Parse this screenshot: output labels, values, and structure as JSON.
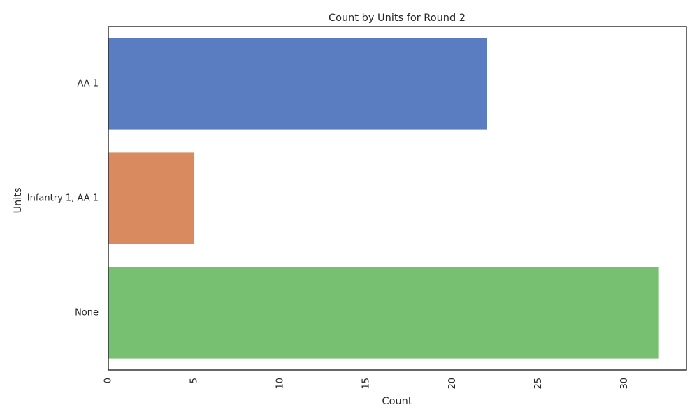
{
  "chart_data": {
    "type": "bar",
    "orientation": "horizontal",
    "title": "Count by Units for Round 2",
    "xlabel": "Count",
    "ylabel": "Units",
    "categories": [
      "AA 1",
      "Infantry 1, AA 1",
      "None"
    ],
    "values": [
      22,
      5,
      32
    ],
    "colors": [
      "#5a7dc2",
      "#d98b5f",
      "#77c072"
    ],
    "xlim": [
      0,
      33.6
    ],
    "xticks": [
      0,
      5,
      10,
      15,
      20,
      25,
      30
    ],
    "grid": false,
    "legend": "none"
  }
}
